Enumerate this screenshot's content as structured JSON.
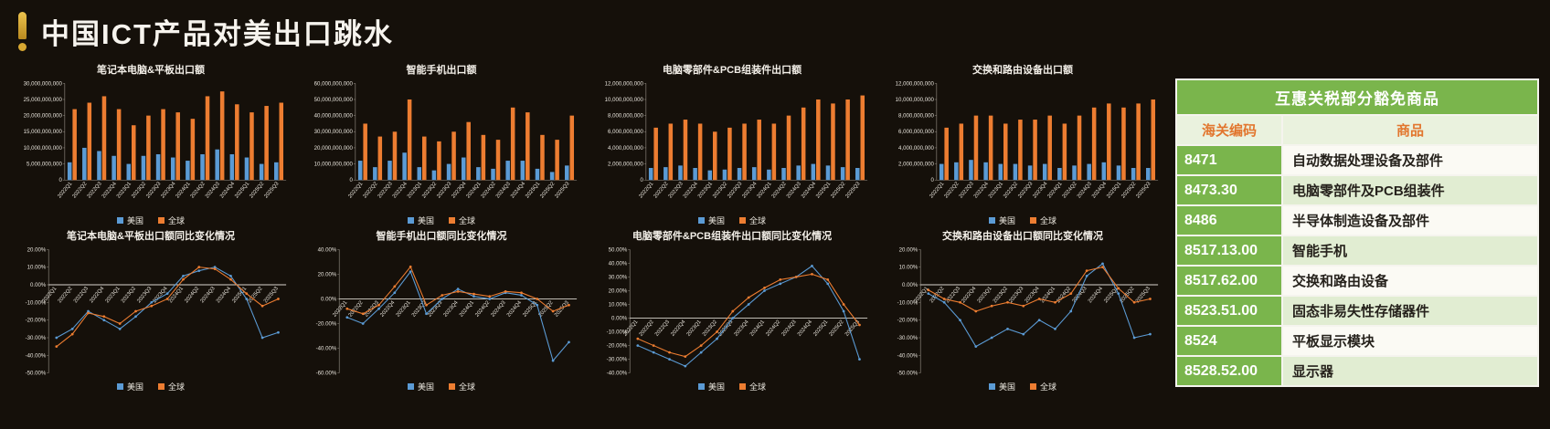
{
  "page": {
    "title": "中国ICT产品对美出口跳水"
  },
  "colors": {
    "us": "#5b9bd5",
    "global": "#ed7d31",
    "green": "#7ab54c",
    "header_orange": "#e2762e",
    "background": "#15100a",
    "gold": "#d8a832"
  },
  "legend": {
    "us": "美国",
    "global": "全球"
  },
  "chart_data": [
    {
      "type": "bar",
      "title": "笔记本电脑&平板出口额",
      "categories": [
        "2022Q1",
        "2022Q2",
        "2022Q3",
        "2022Q4",
        "2023Q1",
        "2023Q2",
        "2023Q3",
        "2023Q4",
        "2024Q1",
        "2024Q2",
        "2024Q3",
        "2024Q4",
        "2025Q1",
        "2025Q2",
        "2025Q3"
      ],
      "series": [
        {
          "name": "美国",
          "values": [
            5500000000,
            10000000000,
            9000000000,
            7500000000,
            5000000000,
            7500000000,
            8000000000,
            7000000000,
            6000000000,
            8000000000,
            9500000000,
            8000000000,
            7000000000,
            5000000000,
            5500000000
          ]
        },
        {
          "name": "全球",
          "values": [
            22000000000,
            24000000000,
            26000000000,
            22000000000,
            17000000000,
            20000000000,
            22000000000,
            21000000000,
            19000000000,
            26000000000,
            27500000000,
            23500000000,
            21000000000,
            23000000000,
            24000000000
          ]
        }
      ],
      "ylim": [
        0,
        30000000000
      ],
      "ytick": 5000000000
    },
    {
      "type": "bar",
      "title": "智能手机出口额",
      "categories": [
        "2022Q1",
        "2022Q2",
        "2022Q3",
        "2022Q4",
        "2023Q1",
        "2023Q2",
        "2023Q3",
        "2023Q4",
        "2024Q1",
        "2024Q2",
        "2024Q3",
        "2024Q4",
        "2025Q1",
        "2025Q2",
        "2025Q3"
      ],
      "series": [
        {
          "name": "美国",
          "values": [
            12000000000,
            8000000000,
            12000000000,
            17000000000,
            8000000000,
            6000000000,
            10000000000,
            14000000000,
            8000000000,
            7000000000,
            12000000000,
            12000000000,
            7000000000,
            5000000000,
            9000000000
          ]
        },
        {
          "name": "全球",
          "values": [
            35000000000,
            27000000000,
            30000000000,
            50000000000,
            27000000000,
            24000000000,
            30000000000,
            36000000000,
            28000000000,
            25000000000,
            45000000000,
            42000000000,
            28000000000,
            25000000000,
            40000000000
          ]
        }
      ],
      "ylim": [
        0,
        60000000000
      ],
      "ytick": 10000000000
    },
    {
      "type": "bar",
      "title": "电脑零部件&PCB组装件出口额",
      "categories": [
        "2022Q1",
        "2022Q2",
        "2022Q3",
        "2022Q4",
        "2023Q1",
        "2023Q2",
        "2023Q3",
        "2023Q4",
        "2024Q1",
        "2024Q2",
        "2024Q3",
        "2024Q4",
        "2025Q1",
        "2025Q2",
        "2025Q3"
      ],
      "series": [
        {
          "name": "美国",
          "values": [
            1500000000,
            1600000000,
            1800000000,
            1500000000,
            1200000000,
            1300000000,
            1500000000,
            1600000000,
            1300000000,
            1500000000,
            1800000000,
            2000000000,
            1800000000,
            1600000000,
            1500000000
          ]
        },
        {
          "name": "全球",
          "values": [
            6500000000,
            7000000000,
            7500000000,
            7000000000,
            6000000000,
            6500000000,
            7000000000,
            7500000000,
            7000000000,
            8000000000,
            9000000000,
            10000000000,
            9500000000,
            10000000000,
            10500000000
          ]
        }
      ],
      "ylim": [
        0,
        12000000000
      ],
      "ytick": 2000000000
    },
    {
      "type": "bar",
      "title": "交换和路由设备出口额",
      "categories": [
        "2022Q1",
        "2022Q2",
        "2022Q3",
        "2022Q4",
        "2023Q1",
        "2023Q2",
        "2023Q3",
        "2023Q4",
        "2024Q1",
        "2024Q2",
        "2024Q3",
        "2024Q4",
        "2025Q1",
        "2025Q2",
        "2025Q3"
      ],
      "series": [
        {
          "name": "美国",
          "values": [
            2000000000,
            2200000000,
            2500000000,
            2200000000,
            2000000000,
            2000000000,
            1800000000,
            2000000000,
            1500000000,
            1800000000,
            2000000000,
            2200000000,
            1800000000,
            1500000000,
            1500000000
          ]
        },
        {
          "name": "全球",
          "values": [
            6500000000,
            7000000000,
            8000000000,
            8000000000,
            7000000000,
            7500000000,
            7500000000,
            8000000000,
            7000000000,
            8000000000,
            9000000000,
            9500000000,
            9000000000,
            9500000000,
            10000000000
          ]
        }
      ],
      "ylim": [
        0,
        12000000000
      ],
      "ytick": 2000000000
    },
    {
      "type": "line",
      "title": "笔记本电脑&平板出口额同比变化情况",
      "categories": [
        "2022Q1",
        "2022Q2",
        "2022Q3",
        "2022Q4",
        "2023Q1",
        "2023Q2",
        "2023Q3",
        "2023Q4",
        "2024Q1",
        "2024Q2",
        "2024Q3",
        "2024Q4",
        "2025Q1",
        "2025Q2",
        "2025Q3"
      ],
      "series": [
        {
          "name": "美国",
          "values": [
            -30,
            -25,
            -15,
            -20,
            -25,
            -18,
            -10,
            -5,
            5,
            8,
            10,
            5,
            -8,
            -30,
            -27
          ]
        },
        {
          "name": "全球",
          "values": [
            -35,
            -28,
            -16,
            -18,
            -22,
            -15,
            -12,
            -8,
            3,
            10,
            9,
            3,
            -5,
            -12,
            -8
          ]
        }
      ],
      "ylim": [
        -50,
        20
      ],
      "ytick": 10
    },
    {
      "type": "line",
      "title": "智能手机出口额同比变化情况",
      "categories": [
        "2022Q1",
        "2022Q2",
        "2022Q3",
        "2022Q4",
        "2023Q1",
        "2023Q2",
        "2023Q3",
        "2023Q4",
        "2024Q1",
        "2024Q2",
        "2024Q3",
        "2024Q4",
        "2025Q1",
        "2025Q2",
        "2025Q3"
      ],
      "series": [
        {
          "name": "美国",
          "values": [
            -15,
            -20,
            -8,
            5,
            22,
            -12,
            0,
            8,
            2,
            0,
            5,
            3,
            -5,
            -50,
            -35
          ]
        },
        {
          "name": "全球",
          "values": [
            -8,
            -12,
            -5,
            10,
            26,
            -5,
            3,
            6,
            4,
            2,
            6,
            5,
            0,
            -10,
            -5
          ]
        }
      ],
      "ylim": [
        -60,
        40
      ],
      "ytick": 20
    },
    {
      "type": "line",
      "title": "电脑零部件&PCB组装件出口额同比变化情况",
      "categories": [
        "2022Q1",
        "2022Q2",
        "2022Q3",
        "2022Q4",
        "2023Q1",
        "2023Q2",
        "2023Q3",
        "2023Q4",
        "2024Q1",
        "2024Q2",
        "2024Q3",
        "2024Q4",
        "2025Q1",
        "2025Q2",
        "2025Q3"
      ],
      "series": [
        {
          "name": "美国",
          "values": [
            -20,
            -25,
            -30,
            -35,
            -25,
            -15,
            0,
            10,
            20,
            25,
            30,
            38,
            25,
            5,
            -30
          ]
        },
        {
          "name": "全球",
          "values": [
            -15,
            -20,
            -25,
            -28,
            -20,
            -10,
            5,
            15,
            22,
            28,
            30,
            32,
            28,
            10,
            -5
          ]
        }
      ],
      "ylim": [
        -40,
        50
      ],
      "ytick": 10
    },
    {
      "type": "line",
      "title": "交换和路由设备出口额同比变化情况",
      "categories": [
        "2022Q1",
        "2022Q2",
        "2022Q3",
        "2022Q4",
        "2023Q1",
        "2023Q2",
        "2023Q3",
        "2023Q4",
        "2024Q1",
        "2024Q2",
        "2024Q3",
        "2024Q4",
        "2025Q1",
        "2025Q2",
        "2025Q3"
      ],
      "series": [
        {
          "name": "美国",
          "values": [
            -5,
            -10,
            -20,
            -35,
            -30,
            -25,
            -28,
            -20,
            -25,
            -15,
            5,
            12,
            -5,
            -30,
            -28
          ]
        },
        {
          "name": "全球",
          "values": [
            -3,
            -8,
            -10,
            -15,
            -12,
            -10,
            -12,
            -8,
            -10,
            -5,
            8,
            10,
            -2,
            -10,
            -8
          ]
        }
      ],
      "ylim": [
        -50,
        20
      ],
      "ytick": 10
    }
  ],
  "table": {
    "title": "互惠关税部分豁免商品",
    "columns": [
      "海关编码",
      "商品"
    ],
    "rows": [
      {
        "code": "8471",
        "product": "自动数据处理设备及部件"
      },
      {
        "code": "8473.30",
        "product": "电脑零部件及PCB组装件"
      },
      {
        "code": "8486",
        "product": "半导体制造设备及部件"
      },
      {
        "code": "8517.13.00",
        "product": "智能手机"
      },
      {
        "code": "8517.62.00",
        "product": "交换和路由设备"
      },
      {
        "code": "8523.51.00",
        "product": "固态非易失性存储器件"
      },
      {
        "code": "8524",
        "product": "平板显示模块"
      },
      {
        "code": "8528.52.00",
        "product": "显示器"
      }
    ]
  }
}
